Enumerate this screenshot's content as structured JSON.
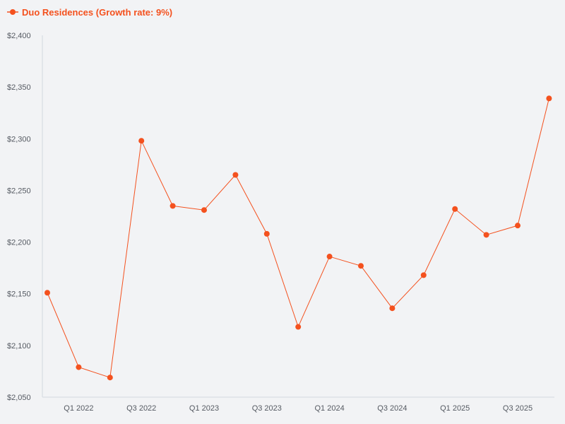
{
  "chart_data": {
    "type": "line",
    "title": "",
    "xlabel": "",
    "ylabel": "",
    "legend_position": "top-left",
    "grid": false,
    "colors": {
      "series": "#f4511e",
      "axis": "#d3d8e0",
      "tick_text": "#555a62",
      "background": "#f2f3f5"
    },
    "categories": [
      "Q4 2021",
      "Q1 2022",
      "Q2 2022",
      "Q3 2022",
      "Q4 2022",
      "Q1 2023",
      "Q2 2023",
      "Q3 2023",
      "Q4 2023",
      "Q1 2024",
      "Q2 2024",
      "Q3 2024",
      "Q4 2024",
      "Q1 2025",
      "Q2 2025",
      "Q3 2025",
      "Q4 2025"
    ],
    "tick_labels": [
      "Q1 2022",
      "Q3 2022",
      "Q1 2023",
      "Q3 2023",
      "Q1 2024",
      "Q3 2024",
      "Q1 2025",
      "Q3 2025"
    ],
    "y_ticks": [
      2050,
      2100,
      2150,
      2200,
      2250,
      2300,
      2350,
      2400
    ],
    "y_tick_labels": [
      "$2,050",
      "$2,100",
      "$2,150",
      "$2,200",
      "$2,250",
      "$2,300",
      "$2,350",
      "$2,400"
    ],
    "ylim": [
      2050,
      2400
    ],
    "series": [
      {
        "name": "Duo Residences (Growth rate: 9%)",
        "values": [
          2151,
          2079,
          2069,
          2298,
          2235,
          2231,
          2265,
          2208,
          2118,
          2186,
          2177,
          2136,
          2168,
          2232,
          2207,
          2216,
          2339
        ]
      }
    ]
  }
}
